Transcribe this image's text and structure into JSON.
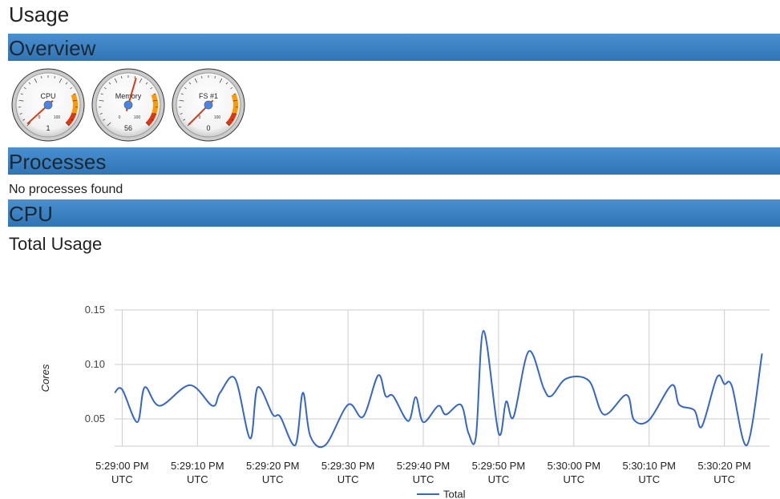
{
  "page": {
    "title": "Usage"
  },
  "sections": {
    "overview": "Overview",
    "processes": "Processes",
    "cpu": "CPU"
  },
  "gauges": {
    "min": 0,
    "max": 100,
    "bands": [
      {
        "from": 75,
        "to": 90,
        "color": "#ff9900"
      },
      {
        "from": 90,
        "to": 100,
        "color": "#dc3912"
      }
    ],
    "items": [
      {
        "label": "CPU",
        "value": 1
      },
      {
        "label": "Memory",
        "value": 56
      },
      {
        "label": "FS #1",
        "value": 0
      }
    ]
  },
  "processes_message": "No processes found",
  "chart_data": {
    "type": "line",
    "title": "Total Usage",
    "y_label": "Cores",
    "x": [
      "5:28:59 PM",
      "5:29:00 PM",
      "5:29:02 PM",
      "5:29:03 PM",
      "5:29:05 PM",
      "5:29:09 PM",
      "5:29:12 PM",
      "5:29:13 PM",
      "5:29:15 PM",
      "5:29:17 PM",
      "5:29:18 PM",
      "5:29:20 PM",
      "5:29:21 PM",
      "5:29:23 PM",
      "5:29:24 PM",
      "5:29:25 PM",
      "5:29:27 PM",
      "5:29:30 PM",
      "5:29:32 PM",
      "5:29:34 PM",
      "5:29:35 PM",
      "5:29:36 PM",
      "5:29:38 PM",
      "5:29:39 PM",
      "5:29:40 PM",
      "5:29:42 PM",
      "5:29:43 PM",
      "5:29:45 PM",
      "5:29:46 PM",
      "5:29:47 PM",
      "5:29:48 PM",
      "5:29:50 PM",
      "5:29:51 PM",
      "5:29:52 PM",
      "5:29:54 PM",
      "5:29:56 PM",
      "5:29:57 PM",
      "5:29:59 PM",
      "5:30:02 PM",
      "5:30:04 PM",
      "5:30:07 PM",
      "5:30:08 PM",
      "5:30:10 PM",
      "5:30:13 PM",
      "5:30:14 PM",
      "5:30:16 PM",
      "5:30:17 PM",
      "5:30:19 PM",
      "5:30:20 PM",
      "5:30:21 PM",
      "5:30:23 PM",
      "5:30:25 PM"
    ],
    "series": [
      {
        "name": "Total",
        "color": "#3366cc",
        "values": [
          0.074,
          0.077,
          0.047,
          0.079,
          0.062,
          0.081,
          0.062,
          0.074,
          0.087,
          0.032,
          0.079,
          0.054,
          0.052,
          0.026,
          0.074,
          0.034,
          0.026,
          0.063,
          0.052,
          0.09,
          0.071,
          0.071,
          0.048,
          0.07,
          0.047,
          0.062,
          0.054,
          0.063,
          0.037,
          0.034,
          0.131,
          0.037,
          0.066,
          0.052,
          0.112,
          0.078,
          0.071,
          0.087,
          0.085,
          0.054,
          0.072,
          0.049,
          0.049,
          0.081,
          0.063,
          0.058,
          0.043,
          0.088,
          0.082,
          0.08,
          0.026,
          0.11
        ]
      }
    ],
    "xlim": [
      "5:28:59 PM",
      "5:30:26 PM"
    ],
    "xticks": [
      {
        "value": "5:29:00 PM",
        "label": "5:29:00 PM UTC"
      },
      {
        "value": "5:29:10 PM",
        "label": "5:29:10 PM UTC"
      },
      {
        "value": "5:29:20 PM",
        "label": "5:29:20 PM UTC"
      },
      {
        "value": "5:29:30 PM",
        "label": "5:29:30 PM UTC"
      },
      {
        "value": "5:29:40 PM",
        "label": "5:29:40 PM UTC"
      },
      {
        "value": "5:29:50 PM",
        "label": "5:29:50 PM UTC"
      },
      {
        "value": "5:30:00 PM",
        "label": "5:30:00 PM UTC"
      },
      {
        "value": "5:30:10 PM",
        "label": "5:30:10 PM UTC"
      },
      {
        "value": "5:30:20 PM",
        "label": "5:30:20 PM UTC"
      }
    ],
    "ylim": [
      0.025,
      0.15
    ],
    "yticks": [
      0.05,
      {
        "value": 0.1,
        "label": "0.10"
      },
      0.15
    ],
    "grid": true,
    "legend": "bottom"
  }
}
